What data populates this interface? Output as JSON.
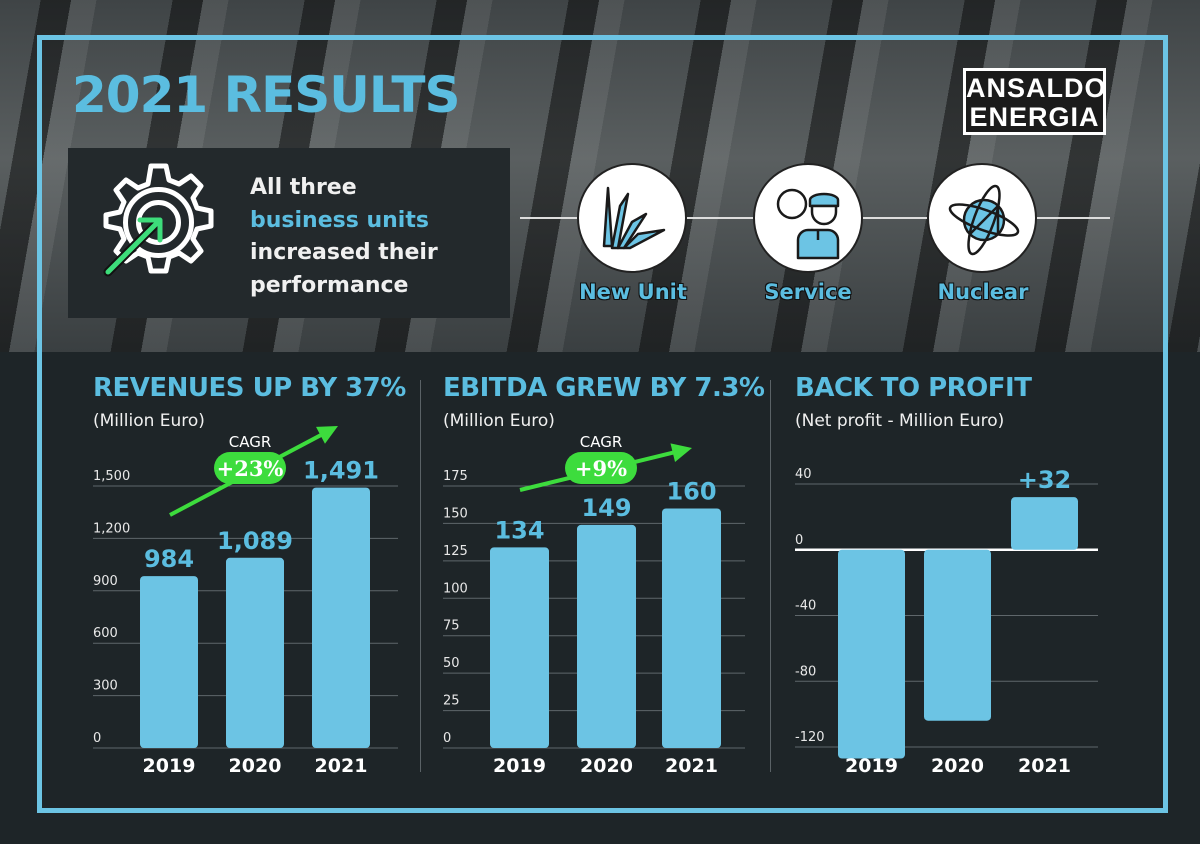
{
  "header": {
    "title": "2021 RESULTS",
    "logo_lines": [
      "ANSALDO",
      "ENERGIA"
    ]
  },
  "summary": {
    "line1": "All three",
    "line2": "business units",
    "line3": "increased their",
    "line4": "performance",
    "icon": "gear-with-arrow-icon"
  },
  "business_units": [
    {
      "label": "New Unit",
      "icon": "turbine-blades-icon"
    },
    {
      "label": "Service",
      "icon": "engineer-with-gear-icon"
    },
    {
      "label": "Nuclear",
      "icon": "atom-globe-icon"
    }
  ],
  "colors": {
    "bar": "#6cc4e4",
    "title": "#5bbde0",
    "cagr": "#3ddc3d",
    "background": "#1e2528"
  },
  "chart_data": [
    {
      "type": "bar",
      "title": "REVENUES UP BY 37%",
      "subtitle": "(Million Euro)",
      "categories": [
        "2019",
        "2020",
        "2021"
      ],
      "values": [
        984,
        1089,
        1491
      ],
      "data_labels": [
        "984",
        "1,089",
        "1,491"
      ],
      "ylim": [
        0,
        1500
      ],
      "yticks": [
        "0",
        "300",
        "600",
        "900",
        "1,200",
        "1,500"
      ],
      "ytick_values": [
        0,
        300,
        600,
        900,
        1200,
        1500
      ],
      "grid": true,
      "annotation": {
        "label": "CAGR",
        "value": "+23%"
      }
    },
    {
      "type": "bar",
      "title": "EBITDA GREW BY 7.3%",
      "subtitle": "(Million Euro)",
      "categories": [
        "2019",
        "2020",
        "2021"
      ],
      "values": [
        134,
        149,
        160
      ],
      "data_labels": [
        "134",
        "149",
        "160"
      ],
      "ylim": [
        0,
        175
      ],
      "yticks": [
        "0",
        "25",
        "50",
        "75",
        "100",
        "125",
        "150",
        "175"
      ],
      "ytick_values": [
        0,
        25,
        50,
        75,
        100,
        125,
        150,
        175
      ],
      "grid": true,
      "annotation": {
        "label": "CAGR",
        "value": "+9%"
      }
    },
    {
      "type": "bar",
      "title": "BACK TO PROFIT",
      "subtitle": "(Net profit - Million Euro)",
      "categories": [
        "2019",
        "2020",
        "2021"
      ],
      "values": [
        -127,
        -104,
        32
      ],
      "data_labels": [
        "",
        "",
        "+32"
      ],
      "ylim": [
        -120,
        40
      ],
      "yticks": [
        "-120",
        "-80",
        "-40",
        "0",
        "40"
      ],
      "ytick_values": [
        -120,
        -80,
        -40,
        0,
        40
      ],
      "grid": true
    }
  ]
}
